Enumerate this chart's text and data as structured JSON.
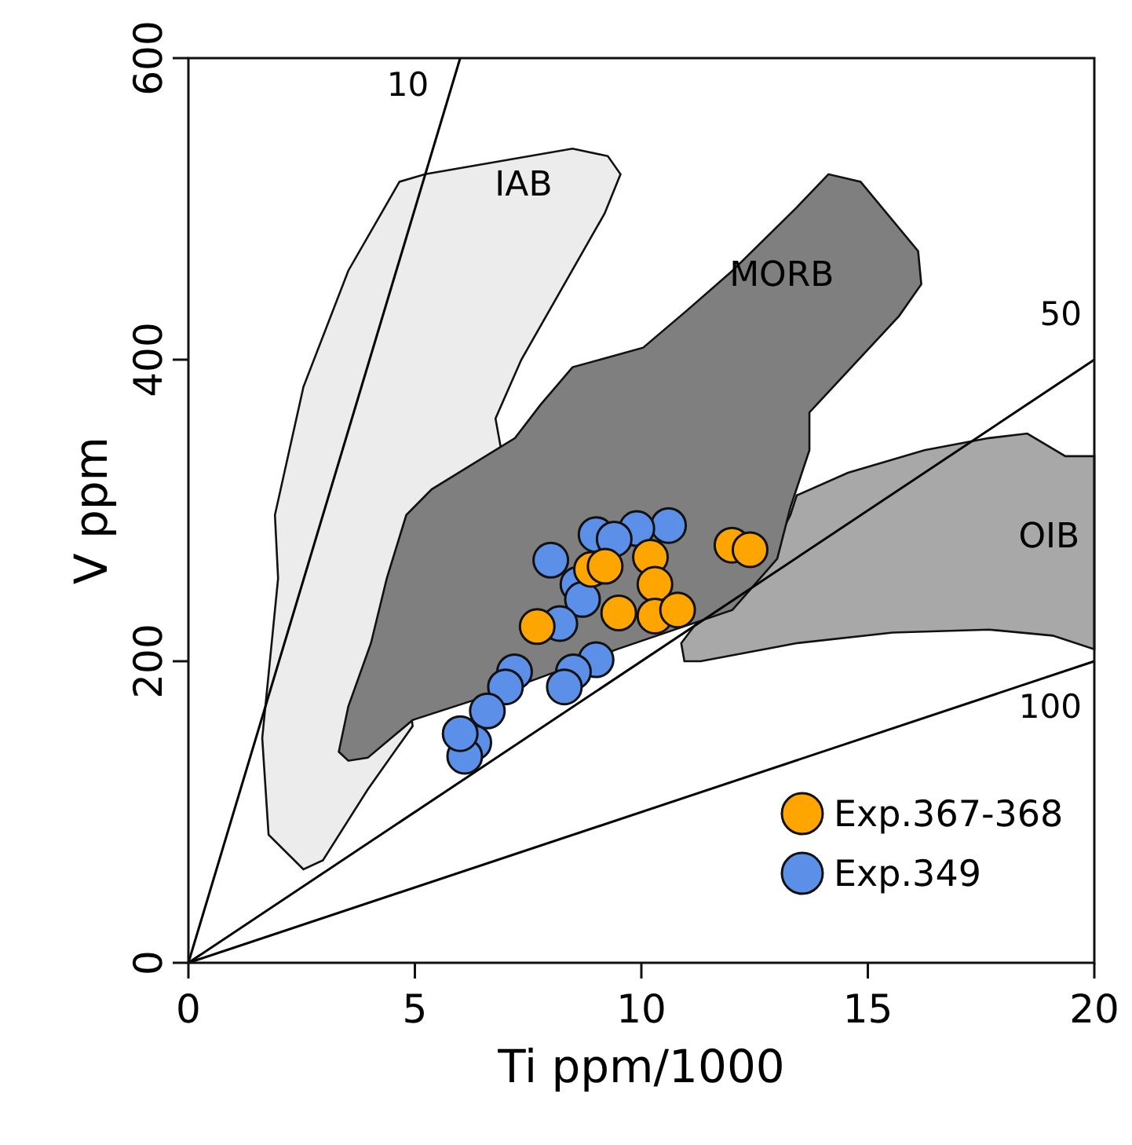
{
  "chart_data": {
    "type": "scatter",
    "xlabel": "Ti ppm/1000",
    "ylabel": "V ppm",
    "xlim": [
      0,
      20
    ],
    "ylim": [
      0,
      600
    ],
    "xticks": [
      0,
      5,
      10,
      15,
      20
    ],
    "yticks": [
      0,
      200,
      400,
      600
    ],
    "marker": "circle",
    "legend": "bottom right",
    "grid": false,
    "series": [
      {
        "name": "10",
        "type": "line",
        "marker": "none",
        "color": "#000000",
        "x": [
          0,
          6
        ],
        "values": [
          0,
          600
        ]
      },
      {
        "name": "50",
        "type": "line",
        "marker": "none",
        "color": "#000000",
        "x": [
          0,
          20
        ],
        "values": [
          0,
          400
        ]
      },
      {
        "name": "100",
        "type": "line",
        "marker": "none",
        "color": "#000000",
        "x": [
          0,
          20
        ],
        "values": [
          0,
          200
        ]
      },
      {
        "name": "Exp.349",
        "color": "#5b8fe8",
        "x": [
          10.6,
          9.9,
          9.0,
          9.4,
          8.0,
          8.6,
          8.7,
          8.2,
          9.0,
          8.5,
          8.3,
          7.2,
          7.0,
          6.6,
          6.3,
          6.1,
          6.0
        ],
        "values": [
          290,
          288,
          284,
          281,
          267,
          251,
          241,
          225,
          201,
          193,
          183,
          193,
          183,
          167,
          146,
          137,
          152
        ]
      },
      {
        "name": "Exp.367-368",
        "color": "#ffa500",
        "x": [
          8.9,
          9.2,
          10.2,
          10.3,
          9.5,
          10.3,
          10.8,
          7.7,
          12.0,
          12.4
        ],
        "values": [
          261,
          263,
          269,
          251,
          232,
          230,
          234,
          223,
          277,
          274
        ]
      }
    ],
    "annotations": [
      "IAB",
      "OIB",
      "MORB"
    ]
  }
}
